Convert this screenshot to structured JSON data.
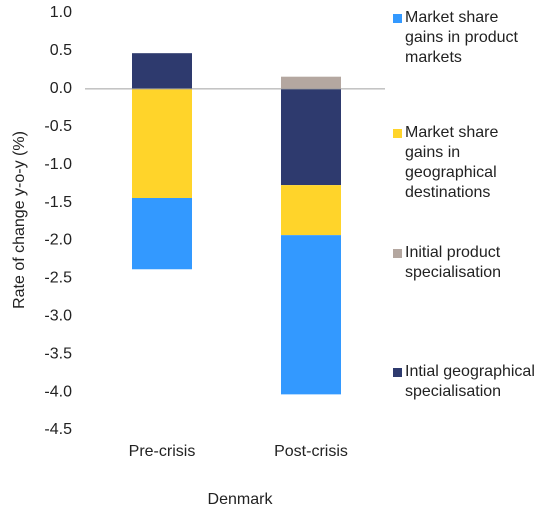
{
  "chart_data": {
    "type": "stacked_bar",
    "y_label": "Rate of change y-o-y (%)",
    "x_label": "Denmark",
    "categories": [
      "Pre-crisis",
      "Post-crisis"
    ],
    "series": [
      {
        "name": "Market share gains in product markets",
        "color": "#3399ff",
        "values": [
          -0.94,
          -2.1
        ]
      },
      {
        "name": "Market share gains in geographical destinations",
        "color": "#ffd42a",
        "values": [
          -1.44,
          -0.66
        ]
      },
      {
        "name": "Initial product specialisation",
        "color": "#b4a7a0",
        "values": [
          0,
          0.16
        ]
      },
      {
        "name": "Intial geographical specialisation",
        "color": "#2e3a6e",
        "values": [
          0.47,
          -1.27
        ]
      }
    ],
    "ylim": [
      -4.5,
      1.0
    ],
    "yticks": [
      {
        "value": 1.0,
        "label": "1.0"
      },
      0.5,
      {
        "value": 0,
        "label": "0.0"
      },
      -0.5,
      {
        "value": -1.0,
        "label": "-1.0"
      },
      -1.5,
      {
        "value": -2.0,
        "label": "-2.0"
      },
      -2.5,
      {
        "value": -3.0,
        "label": "-3.0"
      },
      -3.5,
      {
        "value": -4.0,
        "label": "-4.0"
      },
      -4.5
    ]
  }
}
